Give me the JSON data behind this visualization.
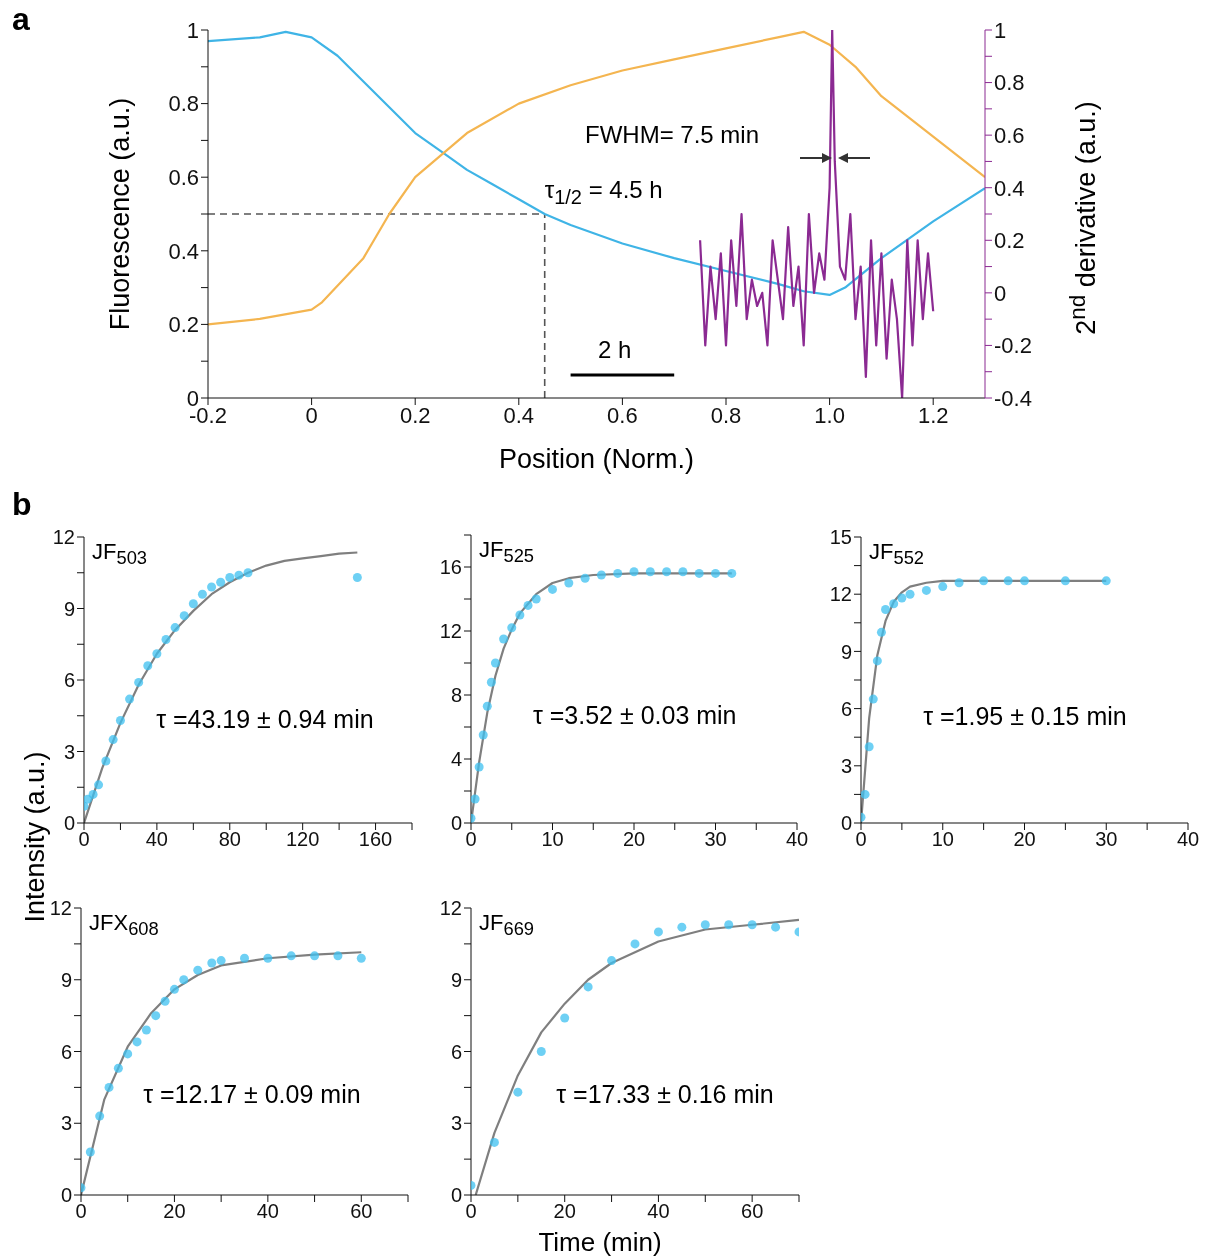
{
  "chart_data": [
    {
      "type": "line",
      "xlabel": "Position (Norm.)",
      "ylabel": "Fluorescence (a.u.)",
      "y2label": "2$^{nd}$ derivative (a.u.)",
      "xlim": [
        -0.2,
        1.3
      ],
      "xticks": [
        -0.2,
        0,
        0.2,
        0.4,
        0.6,
        0.8,
        {
          "value": 1,
          "label": "1.0"
        },
        1.2
      ],
      "ylim": [
        0,
        1
      ],
      "yticks": [
        0,
        {
          "value": 0.1,
          "label": null
        },
        0.2,
        {
          "value": 0.3,
          "label": null
        },
        0.4,
        {
          "value": 0.5,
          "label": null
        },
        0.6,
        {
          "value": 0.7,
          "label": null
        },
        0.8,
        {
          "value": 0.9,
          "label": null
        },
        1
      ],
      "y2lim": [
        -0.4,
        1
      ],
      "y2ticks": [
        -0.4,
        {
          "value": -0.3,
          "label": null
        },
        -0.2,
        {
          "value": -0.1,
          "label": null
        },
        0,
        {
          "value": 0.1,
          "label": null
        },
        0.2,
        {
          "value": 0.3,
          "label": null
        },
        0.4,
        {
          "value": 0.5,
          "label": null
        },
        0.6,
        {
          "value": 0.7,
          "label": null
        },
        0.8,
        {
          "value": 0.9,
          "label": null
        },
        1
      ],
      "series": [
        {
          "color": "#3fb4e6",
          "x": [
            -0.2,
            -0.1,
            -0.05,
            0,
            0.05,
            0.1,
            0.15,
            0.2,
            0.25,
            0.3,
            0.35,
            0.4,
            0.45,
            0.5,
            0.6,
            0.7,
            0.8,
            0.9,
            0.95,
            1.0,
            1.03,
            1.1,
            1.2,
            1.3
          ],
          "values": [
            0.97,
            0.98,
            0.995,
            0.98,
            0.93,
            0.86,
            0.79,
            0.72,
            0.67,
            0.62,
            0.58,
            0.54,
            0.5,
            0.47,
            0.42,
            0.38,
            0.345,
            0.31,
            0.29,
            0.28,
            0.3,
            0.38,
            0.48,
            0.57
          ]
        },
        {
          "color": "#f4b550",
          "x": [
            -0.2,
            -0.1,
            0,
            0.02,
            0.1,
            0.15,
            0.2,
            0.25,
            0.3,
            0.4,
            0.5,
            0.6,
            0.7,
            0.8,
            0.9,
            0.95,
            1.0,
            1.05,
            1.1,
            1.2,
            1.3
          ],
          "values": [
            0.2,
            0.215,
            0.24,
            0.26,
            0.38,
            0.5,
            0.6,
            0.66,
            0.72,
            0.8,
            0.85,
            0.89,
            0.92,
            0.95,
            0.98,
            0.995,
            0.96,
            0.9,
            0.82,
            0.71,
            0.6
          ]
        },
        {
          "color": "#8b2a92",
          "axis": "y2",
          "x": [
            0.75,
            0.76,
            0.77,
            0.78,
            0.79,
            0.8,
            0.81,
            0.82,
            0.83,
            0.84,
            0.85,
            0.86,
            0.87,
            0.88,
            0.89,
            0.9,
            0.91,
            0.92,
            0.93,
            0.94,
            0.95,
            0.96,
            0.97,
            0.98,
            0.99,
            1.0,
            1.005,
            1.01,
            1.02,
            1.03,
            1.04,
            1.05,
            1.06,
            1.07,
            1.08,
            1.09,
            1.1,
            1.11,
            1.12,
            1.13,
            1.14,
            1.15,
            1.16,
            1.17,
            1.18,
            1.19,
            1.2
          ],
          "values": [
            0.2,
            -0.2,
            0.1,
            -0.1,
            0.15,
            -0.2,
            0.2,
            -0.05,
            0.3,
            -0.1,
            0.05,
            -0.05,
            0,
            -0.2,
            0.2,
            0.05,
            -0.1,
            0.25,
            -0.05,
            0.1,
            -0.2,
            0.3,
            0,
            0.15,
            0.05,
            0.4,
            1,
            0.5,
            0.1,
            0.05,
            0.3,
            -0.1,
            0.1,
            -0.32,
            0.2,
            -0.2,
            0.15,
            -0.25,
            0.05,
            -0.1,
            -0.4,
            0.2,
            -0.2,
            0.2,
            -0.1,
            0.15,
            -0.07
          ]
        }
      ],
      "ref_lines": [
        {
          "axis": "y",
          "value": 0.5,
          "line_style": "dashed",
          "color": "#555555"
        },
        {
          "axis": "x",
          "value": 0.45,
          "line_style": "dashed",
          "color": "#555555"
        }
      ],
      "annotations": [
        "a",
        "FWHM= 7.5 min",
        {
          "text": "τ$_{1/2}$ = 4.5 h",
          "x": 0.45,
          "y": 0.5
        },
        "2 h"
      ]
    },
    {
      "type": "scatter",
      "title": "JF$_{503}$",
      "ylabel": "Intensity (a.u.)",
      "xlim": [
        0,
        180
      ],
      "xticks": [
        0,
        {
          "value": 20,
          "label": null
        },
        40,
        {
          "value": 60,
          "label": null
        },
        80,
        {
          "value": 100,
          "label": null
        },
        120,
        {
          "value": 140,
          "label": null
        },
        160,
        {
          "value": 180,
          "label": null
        }
      ],
      "ylim": [
        0,
        12
      ],
      "yticks": [
        0,
        {
          "value": 1.5,
          "label": null
        },
        3,
        {
          "value": 4.5,
          "label": null
        },
        6,
        {
          "value": 7.5,
          "label": null
        },
        9,
        {
          "value": 10.5,
          "label": null
        },
        12
      ],
      "series": [
        {
          "marker": "circle",
          "color": "#3ec0f0",
          "x": [
            0,
            2,
            5,
            8,
            12,
            16,
            20,
            25,
            30,
            35,
            40,
            45,
            50,
            55,
            60,
            65,
            70,
            75,
            80,
            85,
            90,
            150
          ],
          "values": [
            0.7,
            1.0,
            1.2,
            1.6,
            2.6,
            3.5,
            4.3,
            5.2,
            5.9,
            6.6,
            7.1,
            7.7,
            8.2,
            8.7,
            9.2,
            9.6,
            9.9,
            10.1,
            10.3,
            10.4,
            10.5,
            10.3
          ]
        },
        {
          "type": "line",
          "color": "#7f7f7f",
          "x": [
            0,
            10,
            20,
            30,
            40,
            50,
            60,
            70,
            80,
            90,
            100,
            110,
            120,
            130,
            140,
            150
          ],
          "values": [
            0,
            2.3,
            4.2,
            5.8,
            7.1,
            8.1,
            8.9,
            9.6,
            10.1,
            10.5,
            10.8,
            11.0,
            11.1,
            11.2,
            11.3,
            11.35
          ]
        }
      ],
      "annotations": [
        "b",
        "τ =43.19 ± 0.94 min"
      ]
    },
    {
      "type": "scatter",
      "title": "JF$_{525}$",
      "xlim": [
        0,
        40
      ],
      "xticks": [
        0,
        {
          "value": 5,
          "label": null
        },
        10,
        {
          "value": 15,
          "label": null
        },
        20,
        {
          "value": 25,
          "label": null
        },
        30,
        {
          "value": 35,
          "label": null
        },
        40
      ],
      "ylim": [
        0,
        18
      ],
      "yticks": [
        0,
        {
          "value": 2,
          "label": null
        },
        4,
        {
          "value": 6,
          "label": null
        },
        8,
        {
          "value": 10,
          "label": null
        },
        12,
        {
          "value": 14,
          "label": null
        },
        16,
        {
          "value": 18,
          "label": null
        }
      ],
      "series": [
        {
          "marker": "circle",
          "color": "#3ec0f0",
          "x": [
            0,
            0.5,
            1,
            1.5,
            2,
            2.5,
            3,
            4,
            5,
            6,
            7,
            8,
            10,
            12,
            14,
            16,
            18,
            20,
            22,
            24,
            26,
            28,
            30,
            32
          ],
          "values": [
            0.3,
            1.5,
            3.5,
            5.5,
            7.3,
            8.8,
            10,
            11.5,
            12.2,
            13,
            13.6,
            14,
            14.6,
            15,
            15.3,
            15.5,
            15.6,
            15.7,
            15.7,
            15.7,
            15.7,
            15.6,
            15.6,
            15.6
          ]
        },
        {
          "type": "line",
          "color": "#7f7f7f",
          "x": [
            0,
            1,
            2,
            3,
            4,
            5,
            6,
            8,
            10,
            12,
            15,
            20,
            25,
            32
          ],
          "values": [
            0,
            3.8,
            6.9,
            9.2,
            10.9,
            12.1,
            13.1,
            14.3,
            15,
            15.3,
            15.5,
            15.6,
            15.6,
            15.6
          ]
        }
      ],
      "annotations": [
        "τ =3.52 ± 0.03 min"
      ]
    },
    {
      "type": "scatter",
      "title": "JF$_{552}$",
      "xlim": [
        0,
        40
      ],
      "xticks": [
        0,
        {
          "value": 5,
          "label": null
        },
        10,
        {
          "value": 15,
          "label": null
        },
        20,
        {
          "value": 25,
          "label": null
        },
        30,
        {
          "value": 35,
          "label": null
        },
        40
      ],
      "ylim": [
        0,
        15
      ],
      "yticks": [
        0,
        {
          "value": 1.5,
          "label": null
        },
        3,
        {
          "value": 4.5,
          "label": null
        },
        6,
        {
          "value": 7.5,
          "label": null
        },
        9,
        {
          "value": 10.5,
          "label": null
        },
        12,
        {
          "value": 13.5,
          "label": null
        },
        15
      ],
      "series": [
        {
          "marker": "circle",
          "color": "#3ec0f0",
          "x": [
            0,
            0.5,
            1,
            1.5,
            2,
            2.5,
            3,
            4,
            5,
            6,
            8,
            10,
            12,
            15,
            18,
            20,
            25,
            30
          ],
          "values": [
            0.3,
            1.5,
            4,
            6.5,
            8.5,
            10,
            11.2,
            11.5,
            11.8,
            12,
            12.2,
            12.4,
            12.6,
            12.7,
            12.7,
            12.7,
            12.7,
            12.7
          ]
        },
        {
          "type": "line",
          "color": "#7f7f7f",
          "x": [
            0,
            1,
            2,
            3,
            4,
            5,
            6,
            8,
            10,
            17,
            30
          ],
          "values": [
            0,
            5.5,
            8.8,
            10.6,
            11.6,
            12.1,
            12.4,
            12.6,
            12.7,
            12.7,
            12.7
          ]
        }
      ],
      "annotations": [
        "τ =1.95 ± 0.15 min"
      ]
    },
    {
      "type": "scatter",
      "title": "JFX$_{608}$",
      "xlim": [
        0,
        70
      ],
      "xticks": [
        0,
        {
          "value": 10,
          "label": null
        },
        20,
        {
          "value": 30,
          "label": null
        },
        40,
        {
          "value": 50,
          "label": null
        },
        60,
        {
          "value": 70,
          "label": null
        }
      ],
      "ylim": [
        0,
        12
      ],
      "yticks": [
        0,
        {
          "value": 1.5,
          "label": null
        },
        3,
        {
          "value": 4.5,
          "label": null
        },
        6,
        {
          "value": 7.5,
          "label": null
        },
        9,
        {
          "value": 10.5,
          "label": null
        },
        12
      ],
      "series": [
        {
          "marker": "circle",
          "color": "#3ec0f0",
          "x": [
            0,
            2,
            4,
            6,
            8,
            10,
            12,
            14,
            16,
            18,
            20,
            22,
            25,
            28,
            30,
            35,
            40,
            45,
            50,
            55,
            60
          ],
          "values": [
            0.3,
            1.8,
            3.3,
            4.5,
            5.3,
            5.9,
            6.4,
            6.9,
            7.5,
            8.1,
            8.6,
            9,
            9.4,
            9.7,
            9.8,
            9.9,
            9.9,
            10,
            10,
            10,
            9.9
          ]
        },
        {
          "type": "line",
          "color": "#7f7f7f",
          "x": [
            0,
            5,
            10,
            15,
            20,
            25,
            30,
            40,
            50,
            60
          ],
          "values": [
            0,
            4,
            6.2,
            7.6,
            8.6,
            9.2,
            9.6,
            9.9,
            10.05,
            10.15
          ]
        }
      ],
      "annotations": [
        "τ =12.17 ± 0.09 min"
      ]
    },
    {
      "type": "scatter",
      "title": "JF$_{669}$",
      "xlabel": "Time (min)",
      "xlim": [
        0,
        70
      ],
      "xticks": [
        0,
        {
          "value": 10,
          "label": null
        },
        20,
        {
          "value": 30,
          "label": null
        },
        40,
        {
          "value": 50,
          "label": null
        },
        60,
        {
          "value": 70,
          "label": null
        }
      ],
      "ylim": [
        0,
        12
      ],
      "yticks": [
        0,
        {
          "value": 1.5,
          "label": null
        },
        3,
        {
          "value": 4.5,
          "label": null
        },
        6,
        {
          "value": 7.5,
          "label": null
        },
        9,
        {
          "value": 10.5,
          "label": null
        },
        12
      ],
      "series": [
        {
          "marker": "circle",
          "color": "#3ec0f0",
          "x": [
            0,
            5,
            10,
            15,
            20,
            25,
            30,
            35,
            40,
            45,
            50,
            55,
            60,
            65,
            70
          ],
          "values": [
            0.4,
            2.2,
            4.3,
            6,
            7.4,
            8.7,
            9.8,
            10.5,
            11,
            11.2,
            11.3,
            11.3,
            11.3,
            11.2,
            11
          ]
        },
        {
          "type": "line",
          "color": "#7f7f7f",
          "x": [
            1,
            5,
            10,
            15,
            20,
            25,
            30,
            40,
            50,
            60,
            70
          ],
          "values": [
            0,
            2.6,
            5,
            6.8,
            8,
            9,
            9.7,
            10.6,
            11.1,
            11.3,
            11.5
          ]
        }
      ],
      "annotations": [
        "τ =17.33 ± 0.16 min"
      ]
    }
  ]
}
